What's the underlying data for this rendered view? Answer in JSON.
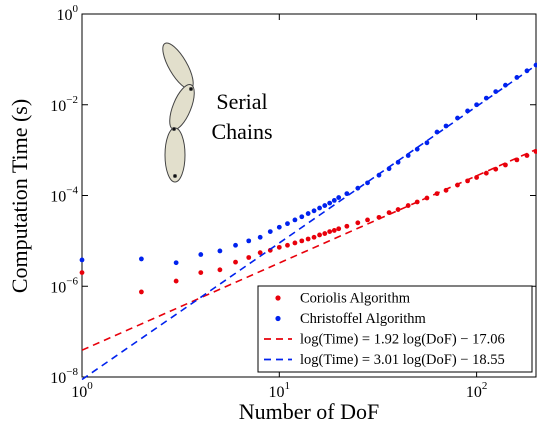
{
  "chart_data": {
    "type": "scatter",
    "x_label": "Number of DoF",
    "y_label": "Computation Time (s)",
    "annotation_lines": [
      "Serial",
      "Chains"
    ],
    "xscale": "log",
    "yscale": "log",
    "xlim": [
      1,
      200
    ],
    "ylim": [
      1e-08,
      1
    ],
    "xticks": [
      {
        "value": 1,
        "label": "10^0"
      },
      {
        "value": 10,
        "label": "10^1"
      },
      {
        "value": 100,
        "label": "10^2"
      }
    ],
    "yticks": [
      {
        "value": 1e-08,
        "label": "10^−8"
      },
      {
        "value": 1e-06,
        "label": "10^−6"
      },
      {
        "value": 0.0001,
        "label": "10^−4"
      },
      {
        "value": 0.01,
        "label": "10^−2"
      },
      {
        "value": 1,
        "label": "10^0"
      }
    ],
    "grid": false,
    "legend": "lower right",
    "x": [
      1,
      2,
      3,
      4,
      5,
      6,
      7,
      8,
      9,
      10,
      11,
      12,
      13,
      14,
      15,
      16,
      17,
      18,
      19,
      20,
      22,
      25,
      28,
      32,
      36,
      40,
      45,
      50,
      56,
      63,
      70,
      80,
      90,
      100,
      112,
      125,
      140,
      160,
      180,
      200
    ],
    "series": [
      {
        "name": "Coriolis Algorithm",
        "color": "#e8000b",
        "style": "dots",
        "values": [
          2e-06,
          7.5e-07,
          1.3e-06,
          2e-06,
          2.3e-06,
          3.4e-06,
          4.3e-06,
          5.5e-06,
          6.2e-06,
          7.2e-06,
          8e-06,
          9e-06,
          1e-05,
          1.1e-05,
          1.2e-05,
          1.35e-05,
          1.45e-05,
          1.6e-05,
          1.7e-05,
          1.85e-05,
          2.1e-05,
          2.5e-05,
          2.9e-05,
          3.3e-05,
          4.2e-05,
          4.9e-05,
          6e-05,
          7.2e-05,
          8.8e-05,
          0.00011,
          0.00013,
          0.00017,
          0.00021,
          0.00025,
          0.00031,
          0.00038,
          0.00047,
          0.00061,
          0.00076,
          0.00093
        ]
      },
      {
        "name": "Christoffel Algorithm",
        "color": "#0022ee",
        "style": "dots",
        "values": [
          3.8e-06,
          4e-06,
          3.3e-06,
          5e-06,
          6e-06,
          8e-06,
          1e-05,
          1.2e-05,
          1.6e-05,
          2e-05,
          2.4e-05,
          2.9e-05,
          3.4e-05,
          4e-05,
          4.6e-05,
          5.3e-05,
          6e-05,
          6.8e-05,
          7.8e-05,
          9e-05,
          0.00011,
          0.000145,
          0.00019,
          0.00028,
          0.00039,
          0.00054,
          0.00076,
          0.00105,
          0.00145,
          0.0025,
          0.0034,
          0.0051,
          0.0073,
          0.01,
          0.014,
          0.0195,
          0.027,
          0.04,
          0.056,
          0.075
        ]
      },
      {
        "name": "log(Time) = 1.92 log(DoF) − 17.06",
        "color": "#e8000b",
        "style": "dashed",
        "x": [
          1,
          200
        ],
        "values": [
          3.9e-08,
          0.00103
        ]
      },
      {
        "name": "log(Time) = 3.01 log(DoF) − 18.55",
        "color": "#0022ee",
        "style": "dashed",
        "x": [
          1,
          200
        ],
        "values": [
          8.8e-09,
          0.074
        ]
      }
    ]
  }
}
